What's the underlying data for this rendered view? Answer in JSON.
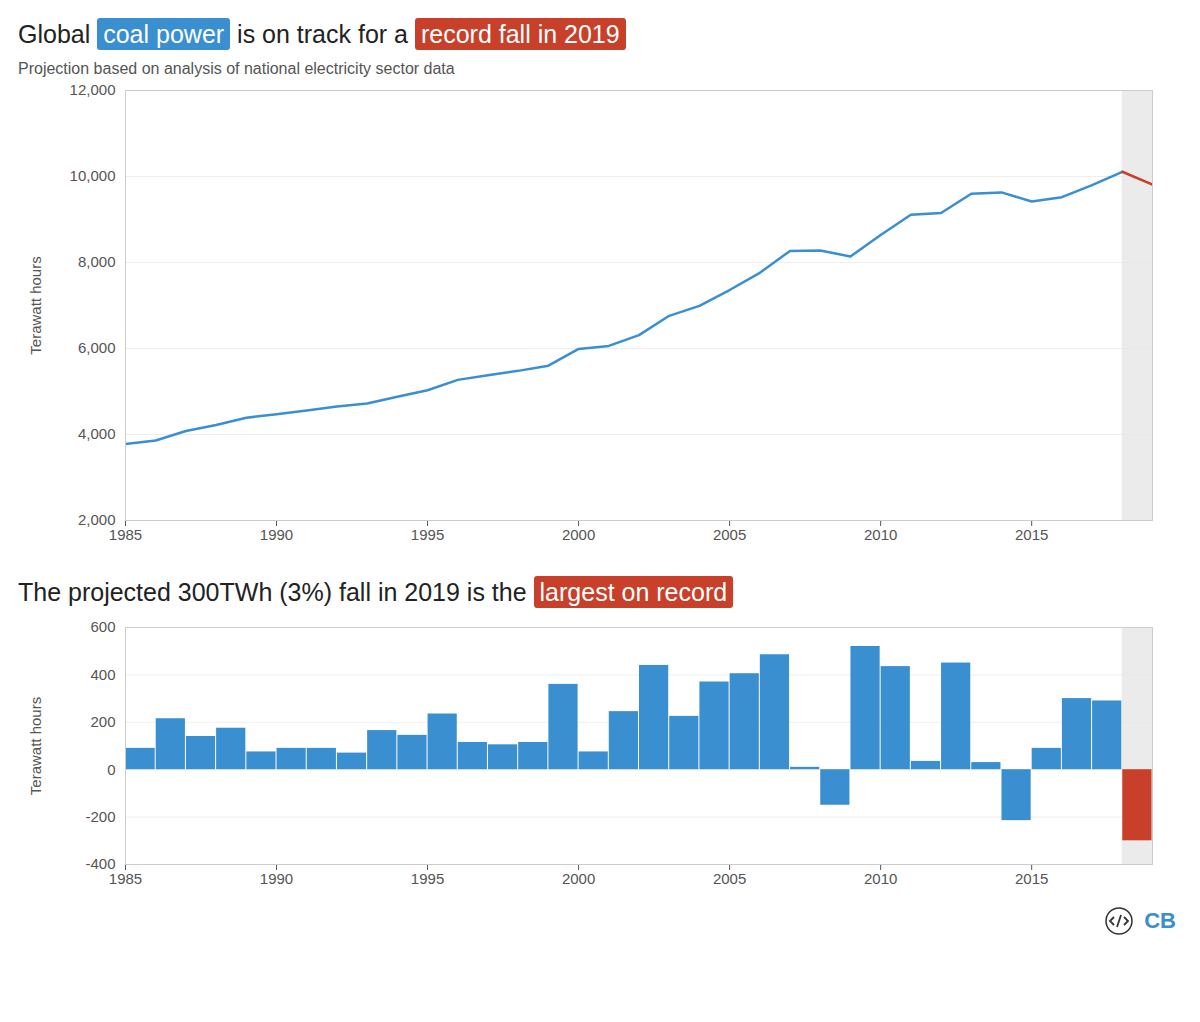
{
  "chart_data": [
    {
      "type": "line",
      "title": [
        {
          "text": "Global "
        },
        {
          "text": "coal power",
          "color": "#3a8fd0"
        },
        {
          "text": " is on track for a "
        },
        {
          "text": "record fall in 2019",
          "color": "#c8402a"
        }
      ],
      "subtitle": "Projection based on analysis of national electricity sector data",
      "y_label": "Terawatt hours",
      "x": [
        1985,
        1986,
        1987,
        1988,
        1989,
        1990,
        1991,
        1992,
        1993,
        1994,
        1995,
        1996,
        1997,
        1998,
        1999,
        2000,
        2001,
        2002,
        2003,
        2004,
        2005,
        2006,
        2007,
        2008,
        2009,
        2010,
        2011,
        2012,
        2013,
        2014,
        2015,
        2016,
        2017,
        2018,
        2019
      ],
      "series": [
        {
          "color": "#3a8fd0",
          "values": [
            3780,
            3860,
            4080,
            4220,
            4390,
            4470,
            4560,
            4650,
            4720,
            4880,
            5030,
            5270,
            5380,
            5480,
            5600,
            5990,
            6060,
            6310,
            6760,
            6990,
            7360,
            7760,
            8270,
            8280,
            8140,
            8640,
            9110,
            9150,
            9600,
            9630,
            9420,
            9520,
            9800,
            10110,
            null
          ]
        },
        {
          "color": "#c8402a",
          "values": [
            null,
            null,
            null,
            null,
            null,
            null,
            null,
            null,
            null,
            null,
            null,
            null,
            null,
            null,
            null,
            null,
            null,
            null,
            null,
            null,
            null,
            null,
            null,
            null,
            null,
            null,
            null,
            null,
            null,
            null,
            null,
            null,
            null,
            10110,
            9810
          ]
        }
      ],
      "xlim": [
        1985,
        2019
      ],
      "xticks": [
        1985,
        1990,
        1995,
        2000,
        2005,
        2010,
        2015
      ],
      "ylim": [
        2000,
        12000
      ],
      "yticks": [
        {
          "value": 2000,
          "label": "2,000"
        },
        {
          "value": 4000,
          "label": "4,000"
        },
        {
          "value": 6000,
          "label": "6,000"
        },
        {
          "value": 8000,
          "label": "8,000"
        },
        {
          "value": 10000,
          "label": "10,000"
        },
        {
          "value": 12000,
          "label": "12,000"
        }
      ],
      "grid": true
    },
    {
      "type": "bar",
      "title": [
        {
          "text": "The projected 300TWh (3%) fall in 2019 is the "
        },
        {
          "text": "largest on record",
          "color": "#c8402a"
        }
      ],
      "y_label": "Terawatt hours",
      "x": [
        1986,
        1987,
        1988,
        1989,
        1990,
        1991,
        1992,
        1993,
        1994,
        1995,
        1996,
        1997,
        1998,
        1999,
        2000,
        2001,
        2002,
        2003,
        2004,
        2005,
        2006,
        2007,
        2008,
        2009,
        2010,
        2011,
        2012,
        2013,
        2014,
        2015,
        2016,
        2017,
        2018,
        2019
      ],
      "values": [
        90,
        215,
        140,
        175,
        75,
        90,
        90,
        70,
        165,
        145,
        235,
        115,
        105,
        115,
        360,
        75,
        245,
        440,
        225,
        370,
        405,
        485,
        10,
        -150,
        520,
        435,
        35,
        450,
        30,
        -215,
        90,
        300,
        290,
        -300
      ],
      "colors": [
        "#3a8fd0",
        "#3a8fd0",
        "#3a8fd0",
        "#3a8fd0",
        "#3a8fd0",
        "#3a8fd0",
        "#3a8fd0",
        "#3a8fd0",
        "#3a8fd0",
        "#3a8fd0",
        "#3a8fd0",
        "#3a8fd0",
        "#3a8fd0",
        "#3a8fd0",
        "#3a8fd0",
        "#3a8fd0",
        "#3a8fd0",
        "#3a8fd0",
        "#3a8fd0",
        "#3a8fd0",
        "#3a8fd0",
        "#3a8fd0",
        "#3a8fd0",
        "#3a8fd0",
        "#3a8fd0",
        "#3a8fd0",
        "#3a8fd0",
        "#3a8fd0",
        "#3a8fd0",
        "#3a8fd0",
        "#3a8fd0",
        "#3a8fd0",
        "#3a8fd0",
        "#c8402a"
      ],
      "xlim": [
        1985,
        2019
      ],
      "xticks": [
        1985,
        1990,
        1995,
        2000,
        2005,
        2010,
        2015
      ],
      "ylim": [
        -400,
        600
      ],
      "yticks": [
        -400,
        -200,
        0,
        200,
        400,
        600
      ],
      "grid": true,
      "credit": "CB"
    }
  ]
}
